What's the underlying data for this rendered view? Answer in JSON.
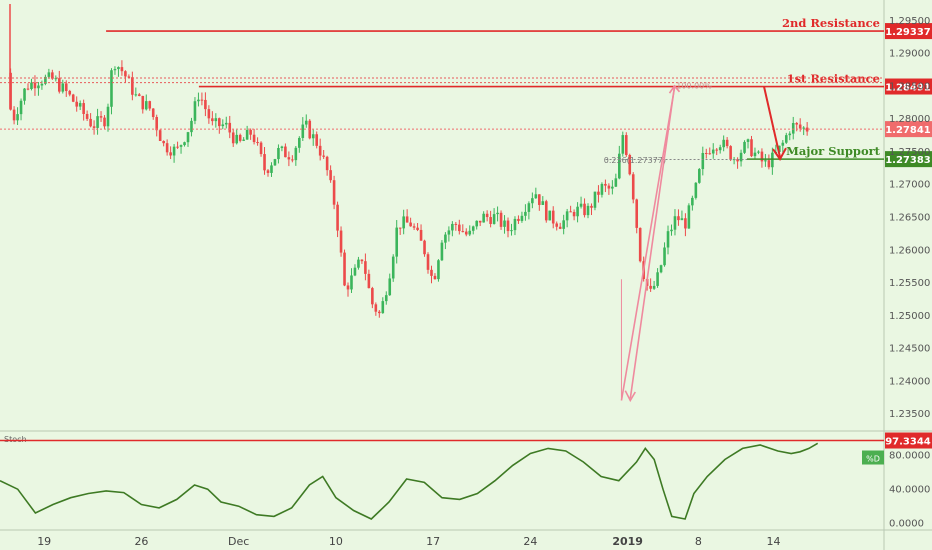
{
  "chart_data": [
    {
      "type": "candlestick",
      "ylim": [
        1.2325,
        1.2975
      ],
      "y_ticks": [
        "1.29500",
        "1.29000",
        "1.28500",
        "1.28000",
        "1.27500",
        "1.27000",
        "1.26500",
        "1.26000",
        "1.25500",
        "1.25000",
        "1.24500",
        "1.24000",
        "1.23500"
      ],
      "x_ticks": [
        {
          "label": "19",
          "pos": 0.05
        },
        {
          "label": "26",
          "pos": 0.16
        },
        {
          "label": "Dec",
          "pos": 0.27
        },
        {
          "label": "10",
          "pos": 0.38
        },
        {
          "label": "17",
          "pos": 0.49
        },
        {
          "label": "24",
          "pos": 0.6
        },
        {
          "label": "2019",
          "pos": 0.71
        },
        {
          "label": "8",
          "pos": 0.79
        },
        {
          "label": "14",
          "pos": 0.875
        }
      ],
      "close_path": [
        [
          0.0,
          1.287
        ],
        [
          0.015,
          1.28
        ],
        [
          0.03,
          1.285
        ],
        [
          0.045,
          1.286
        ],
        [
          0.06,
          1.286
        ],
        [
          0.075,
          1.284
        ],
        [
          0.09,
          1.2815
        ],
        [
          0.105,
          1.279
        ],
        [
          0.12,
          1.28
        ],
        [
          0.128,
          1.289
        ],
        [
          0.14,
          1.287
        ],
        [
          0.155,
          1.283
        ],
        [
          0.17,
          1.2815
        ],
        [
          0.185,
          1.276
        ],
        [
          0.2,
          1.275
        ],
        [
          0.215,
          1.279
        ],
        [
          0.225,
          1.284
        ],
        [
          0.24,
          1.279
        ],
        [
          0.255,
          1.279
        ],
        [
          0.27,
          1.276
        ],
        [
          0.285,
          1.278
        ],
        [
          0.3,
          1.272
        ],
        [
          0.315,
          1.275
        ],
        [
          0.33,
          1.2745
        ],
        [
          0.345,
          1.279
        ],
        [
          0.36,
          1.276
        ],
        [
          0.37,
          1.272
        ],
        [
          0.38,
          1.266
        ],
        [
          0.39,
          1.254
        ],
        [
          0.4,
          1.256
        ],
        [
          0.41,
          1.259
        ],
        [
          0.42,
          1.252
        ],
        [
          0.43,
          1.25
        ],
        [
          0.44,
          1.256
        ],
        [
          0.45,
          1.264
        ],
        [
          0.465,
          1.264
        ],
        [
          0.48,
          1.26
        ],
        [
          0.49,
          1.255
        ],
        [
          0.5,
          1.262
        ],
        [
          0.515,
          1.264
        ],
        [
          0.53,
          1.262
        ],
        [
          0.545,
          1.265
        ],
        [
          0.56,
          1.265
        ],
        [
          0.575,
          1.263
        ],
        [
          0.59,
          1.266
        ],
        [
          0.605,
          1.269
        ],
        [
          0.62,
          1.265
        ],
        [
          0.635,
          1.264
        ],
        [
          0.65,
          1.266
        ],
        [
          0.665,
          1.266
        ],
        [
          0.68,
          1.2695
        ],
        [
          0.695,
          1.269
        ],
        [
          0.705,
          1.278
        ],
        [
          0.715,
          1.27
        ],
        [
          0.725,
          1.258
        ],
        [
          0.735,
          1.253
        ],
        [
          0.745,
          1.256
        ],
        [
          0.755,
          1.262
        ],
        [
          0.765,
          1.265
        ],
        [
          0.775,
          1.264
        ],
        [
          0.785,
          1.268
        ],
        [
          0.795,
          1.274
        ],
        [
          0.805,
          1.276
        ],
        [
          0.815,
          1.2765
        ],
        [
          0.83,
          1.274
        ],
        [
          0.845,
          1.276
        ],
        [
          0.855,
          1.2745
        ],
        [
          0.865,
          1.273
        ],
        [
          0.875,
          1.274
        ],
        [
          0.885,
          1.276
        ],
        [
          0.895,
          1.279
        ],
        [
          0.905,
          1.2785
        ]
      ],
      "levels": [
        {
          "label": "2nd Resistance",
          "value": "1.29337",
          "y": 1.29337,
          "color": "#e02a2a",
          "style": "solid"
        },
        {
          "label": "1st Resistance",
          "value": "1.28491",
          "y": 1.28491,
          "color": "#e02a2a",
          "style": "solid"
        },
        {
          "label": "",
          "value": "1.27841",
          "y": 1.27841,
          "color": "#f06c6c",
          "style": "dotted"
        },
        {
          "label": "Major Support",
          "value": "1.27383",
          "y": 1.27383,
          "color": "#3e8a26",
          "style": "solid"
        }
      ],
      "extra_dotted_levels": [
        1.2862,
        1.2855
      ],
      "fib_labels": [
        "0.236(1.27377)",
        "100.00%"
      ]
    },
    {
      "type": "line",
      "indicator": "Stoch",
      "series_name": "%D",
      "ylim": [
        -8,
        105
      ],
      "y_ticks": [
        "80.0000",
        "40.0000",
        "0.0000"
      ],
      "level": {
        "value": "97.3344",
        "y": 97.3344
      },
      "values": [
        [
          0.0,
          50
        ],
        [
          0.02,
          40
        ],
        [
          0.04,
          12
        ],
        [
          0.06,
          22
        ],
        [
          0.08,
          30
        ],
        [
          0.1,
          35
        ],
        [
          0.12,
          38
        ],
        [
          0.14,
          36
        ],
        [
          0.16,
          22
        ],
        [
          0.18,
          18
        ],
        [
          0.2,
          28
        ],
        [
          0.22,
          45
        ],
        [
          0.235,
          40
        ],
        [
          0.25,
          25
        ],
        [
          0.27,
          20
        ],
        [
          0.29,
          10
        ],
        [
          0.31,
          8
        ],
        [
          0.33,
          18
        ],
        [
          0.35,
          45
        ],
        [
          0.365,
          55
        ],
        [
          0.38,
          30
        ],
        [
          0.4,
          15
        ],
        [
          0.42,
          5
        ],
        [
          0.44,
          25
        ],
        [
          0.46,
          52
        ],
        [
          0.48,
          48
        ],
        [
          0.5,
          30
        ],
        [
          0.52,
          28
        ],
        [
          0.54,
          35
        ],
        [
          0.56,
          50
        ],
        [
          0.58,
          68
        ],
        [
          0.6,
          82
        ],
        [
          0.62,
          88
        ],
        [
          0.64,
          85
        ],
        [
          0.66,
          72
        ],
        [
          0.68,
          55
        ],
        [
          0.7,
          50
        ],
        [
          0.72,
          72
        ],
        [
          0.73,
          88
        ],
        [
          0.74,
          75
        ],
        [
          0.75,
          40
        ],
        [
          0.76,
          8
        ],
        [
          0.775,
          5
        ],
        [
          0.785,
          35
        ],
        [
          0.8,
          55
        ],
        [
          0.82,
          75
        ],
        [
          0.84,
          88
        ],
        [
          0.86,
          92
        ],
        [
          0.88,
          85
        ],
        [
          0.895,
          82
        ],
        [
          0.905,
          84
        ],
        [
          0.915,
          88
        ],
        [
          0.925,
          94
        ]
      ]
    }
  ],
  "colors": {
    "up": "#3bb55b",
    "down": "#ec4a4a",
    "tag_red": "#e02a2a",
    "tag_green": "#3e8a26",
    "stoch": "#3e7a24",
    "arrow_pink": "#ef8a9e"
  }
}
